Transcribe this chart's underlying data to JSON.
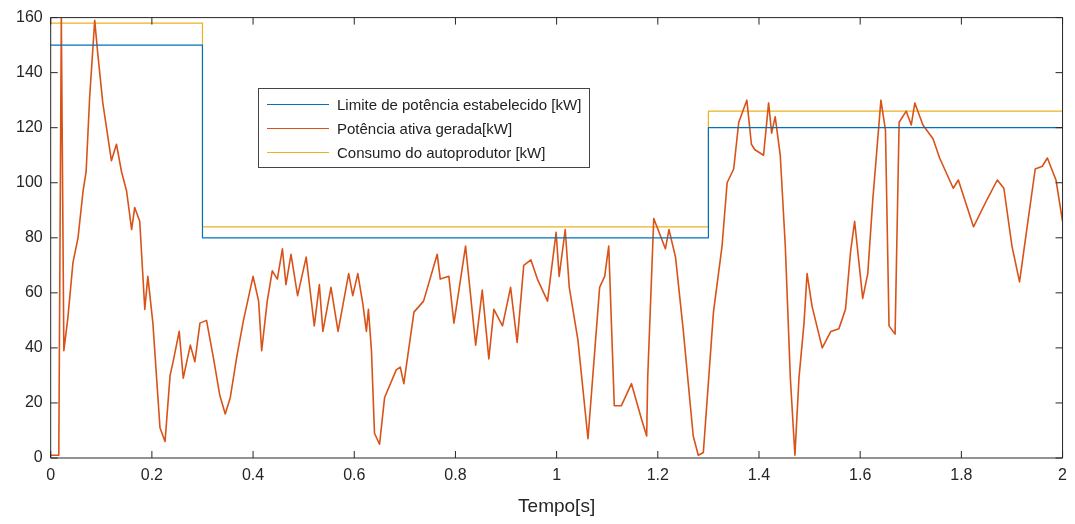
{
  "chart_data": {
    "type": "line",
    "xlabel": "Tempo[s]",
    "xlim": [
      0,
      2
    ],
    "xticks": [
      0,
      0.2,
      0.4,
      0.6,
      0.8,
      1,
      1.2,
      1.4,
      1.6,
      1.8,
      2
    ],
    "ylim": [
      0,
      160
    ],
    "yticks": [
      0,
      20,
      40,
      60,
      80,
      100,
      120,
      140,
      160
    ],
    "grid": false,
    "legend": "top",
    "marker": "none",
    "line_style": "solid",
    "series": [
      {
        "name": "Limite de potência estabelecido [kW]",
        "type": "step",
        "color": "#0072bd",
        "x": [
          0,
          0.3,
          1.3,
          2
        ],
        "values": [
          150,
          80,
          120,
          120
        ]
      },
      {
        "name": "Potência ativa gerada[kW]",
        "type": "line",
        "color": "#d95319",
        "x": [
          0,
          0.016,
          0.021,
          0.026,
          0.034,
          0.044,
          0.054,
          0.064,
          0.07,
          0.077,
          0.087,
          0.093,
          0.103,
          0.12,
          0.13,
          0.14,
          0.15,
          0.16,
          0.166,
          0.176,
          0.186,
          0.192,
          0.202,
          0.216,
          0.226,
          0.236,
          0.242,
          0.254,
          0.262,
          0.276,
          0.285,
          0.295,
          0.308,
          0.322,
          0.334,
          0.345,
          0.355,
          0.368,
          0.381,
          0.4,
          0.411,
          0.417,
          0.428,
          0.438,
          0.448,
          0.458,
          0.465,
          0.475,
          0.488,
          0.505,
          0.521,
          0.531,
          0.538,
          0.554,
          0.568,
          0.578,
          0.589,
          0.597,
          0.607,
          0.617,
          0.624,
          0.628,
          0.634,
          0.64,
          0.65,
          0.66,
          0.683,
          0.691,
          0.698,
          0.718,
          0.737,
          0.764,
          0.77,
          0.787,
          0.797,
          0.82,
          0.84,
          0.853,
          0.866,
          0.876,
          0.893,
          0.909,
          0.922,
          0.935,
          0.949,
          0.962,
          0.982,
          0.999,
          1.005,
          1.017,
          1.025,
          1.042,
          1.062,
          1.085,
          1.095,
          1.103,
          1.114,
          1.128,
          1.148,
          1.168,
          1.178,
          1.18,
          1.192,
          1.215,
          1.222,
          1.235,
          1.25,
          1.27,
          1.28,
          1.29,
          1.31,
          1.327,
          1.337,
          1.35,
          1.36,
          1.376,
          1.385,
          1.392,
          1.409,
          1.419,
          1.425,
          1.432,
          1.442,
          1.452,
          1.462,
          1.471,
          1.479,
          1.489,
          1.495,
          1.505,
          1.525,
          1.542,
          1.558,
          1.571,
          1.581,
          1.589,
          1.605,
          1.615,
          1.625,
          1.641,
          1.65,
          1.657,
          1.669,
          1.677,
          1.691,
          1.701,
          1.708,
          1.724,
          1.744,
          1.757,
          1.784,
          1.794,
          1.824,
          1.851,
          1.871,
          1.884,
          1.9,
          1.915,
          1.93,
          1.946,
          1.96,
          1.97,
          1.987,
          2
        ],
        "values": [
          1,
          1,
          160,
          39,
          51,
          71,
          80,
          97,
          104,
          131,
          159,
          147,
          129,
          108,
          114,
          104,
          97,
          83,
          91,
          86,
          54,
          66,
          49,
          11,
          6,
          30,
          35,
          46,
          29,
          41,
          35,
          49,
          50,
          36,
          23,
          16,
          22,
          37,
          50,
          66,
          57,
          39,
          57,
          68,
          65,
          76,
          63,
          74,
          59,
          73,
          48,
          63,
          46,
          62,
          46,
          56,
          67,
          59,
          67,
          56,
          46,
          54,
          39,
          9,
          5,
          22,
          32,
          33,
          27,
          53,
          57,
          74,
          65,
          66,
          49,
          77,
          41,
          61,
          36,
          54,
          48,
          62,
          42,
          70,
          72,
          65,
          57,
          82,
          66,
          83,
          62,
          43,
          7,
          62,
          66,
          77,
          19,
          19,
          27,
          14,
          8,
          29,
          87,
          76,
          83,
          73,
          47,
          8,
          1,
          2,
          53,
          77,
          100,
          105,
          122,
          130,
          114,
          112,
          110,
          129,
          118,
          124,
          110,
          77,
          29,
          1,
          29,
          49,
          67,
          55,
          40,
          46,
          47,
          54,
          75,
          86,
          58,
          67,
          94,
          130,
          119,
          48,
          45,
          122,
          126,
          121,
          129,
          121,
          116,
          109,
          98,
          101,
          84,
          94,
          101,
          98,
          77,
          64,
          84,
          105,
          106,
          109,
          101,
          86
        ]
      },
      {
        "name": "Consumo do autoprodutor [kW]",
        "type": "step",
        "color": "#edb120",
        "x": [
          0,
          0.3,
          1.3,
          2
        ],
        "values": [
          158,
          84,
          126,
          126
        ]
      }
    ]
  }
}
